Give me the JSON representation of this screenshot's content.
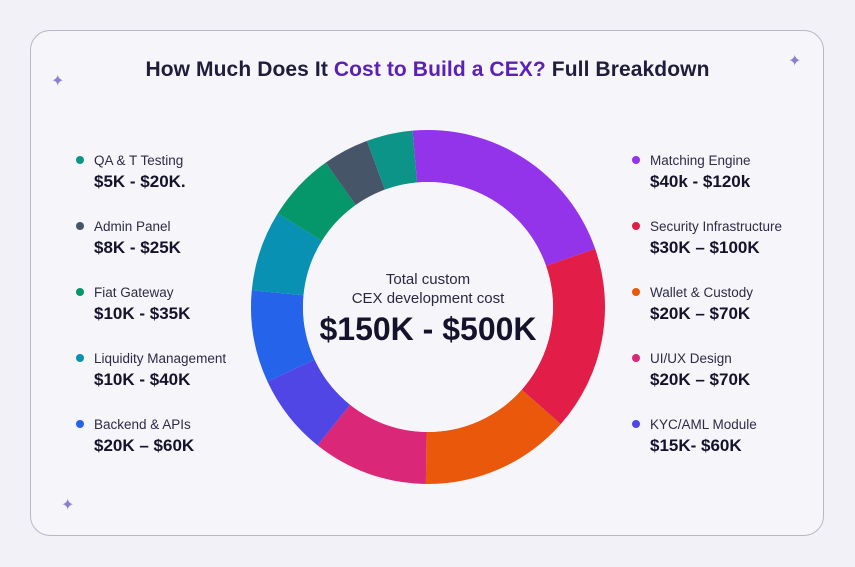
{
  "title": {
    "part1": "How Much Does It ",
    "accent": "Cost to Build a CEX?",
    "part2": " Full Breakdown"
  },
  "center": {
    "line1": "Total custom",
    "line2": "CEX development cost",
    "value": "$150K - $500K"
  },
  "legend_left": [
    {
      "label": "QA & T Testing",
      "value": "$5K - $20K.",
      "color": "#0d9488"
    },
    {
      "label": "Admin Panel",
      "value": "$8K - $25K",
      "color": "#475569"
    },
    {
      "label": "Fiat Gateway",
      "value": "$10K - $35K",
      "color": "#059669"
    },
    {
      "label": "Liquidity Management",
      "value": "$10K - $40K",
      "color": "#0891b2"
    },
    {
      "label": "Backend & APIs",
      "value": "$20K – $60K",
      "color": "#2563eb"
    }
  ],
  "legend_right": [
    {
      "label": "Matching Engine",
      "value": "$40k - $120k",
      "color": "#9333ea"
    },
    {
      "label": "Security Infrastructure",
      "value": "$30K – $100K",
      "color": "#e11d48"
    },
    {
      "label": "Wallet & Custody",
      "value": "$20K – $70K",
      "color": "#ea580c"
    },
    {
      "label": "UI/UX Design",
      "value": "$20K – $70K",
      "color": "#db2777"
    },
    {
      "label": "KYC/AML Module",
      "value": "$15K- $60K",
      "color": "#4f46e5"
    }
  ],
  "chart_data": {
    "type": "pie",
    "style": "donut",
    "slices": [
      {
        "name": "Matching Engine",
        "value": 20,
        "color": "#9333ea"
      },
      {
        "name": "Security Infrastructure",
        "value": 16,
        "color": "#e11d48"
      },
      {
        "name": "Wallet & Custody",
        "value": 13,
        "color": "#ea580c"
      },
      {
        "name": "UI/UX Design",
        "value": 10,
        "color": "#db2777"
      },
      {
        "name": "KYC/AML Module",
        "value": 7,
        "color": "#4f46e5"
      },
      {
        "name": "Backend & APIs",
        "value": 8,
        "color": "#2563eb"
      },
      {
        "name": "Liquidity Management",
        "value": 7,
        "color": "#0891b2"
      },
      {
        "name": "Fiat Gateway",
        "value": 6,
        "color": "#059669"
      },
      {
        "name": "Admin Panel",
        "value": 4,
        "color": "#475569"
      },
      {
        "name": "QA & T Testing",
        "value": 4,
        "color": "#0d9488"
      }
    ]
  }
}
